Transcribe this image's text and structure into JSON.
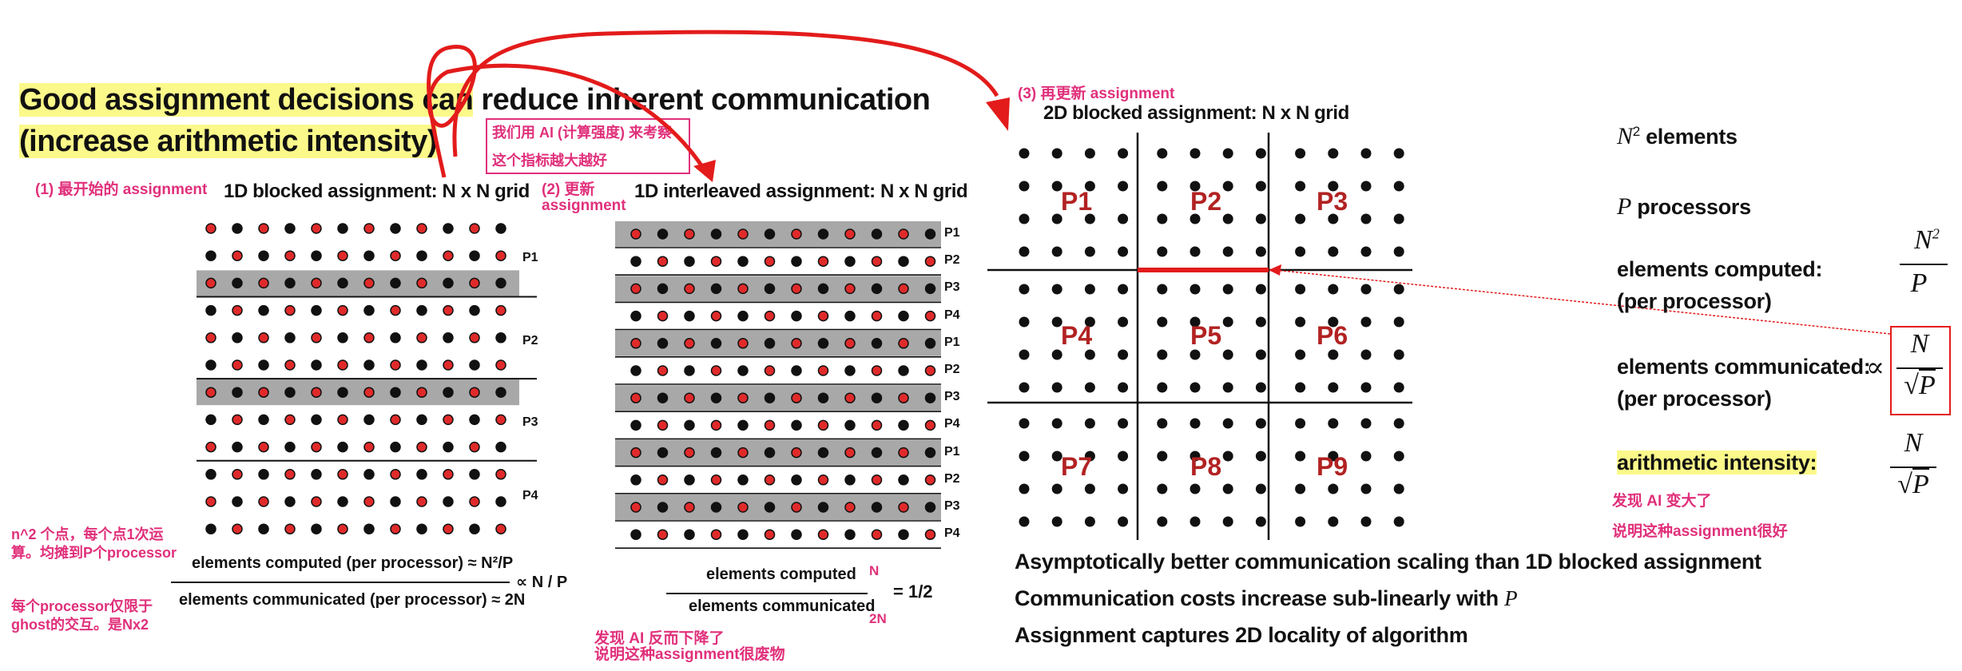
{
  "title": {
    "line1_hl": "Good assignment decisions can",
    "line1_rest": " reduce inherent communication",
    "line2": "(increase arithmetic intensity)"
  },
  "note_box": {
    "line1": "我们用 AI (计算强度) 来考察",
    "line2": "这个指标越大越好"
  },
  "left": {
    "step_label": "(1) 最开始的 assignment",
    "subtitle": "1D blocked assignment: N x N grid",
    "procs": [
      "P1",
      "P2",
      "P3",
      "P4"
    ],
    "eq_numerator": "elements computed (per processor) ≈ N²/P",
    "eq_denominator": "elements communicated (per processor)  ≈ 2N",
    "eq_result": "∝ N / P",
    "note1": "n^2 个点，每个点1次运\n算。均摊到P个processor",
    "note2": "每个processor仅限于\nghost的交互。是Nx2"
  },
  "middle": {
    "step_label_line1": "(2) 更新",
    "step_label_line2": "assignment",
    "subtitle": "1D interleaved assignment: N x N grid",
    "procs": [
      "P1",
      "P2",
      "P3",
      "P4",
      "P1",
      "P2",
      "P3",
      "P4",
      "P1",
      "P2",
      "P3",
      "P4"
    ],
    "eq_numerator": "elements computed",
    "eq_denominator": "elements communicated",
    "eq_num_small": "N",
    "eq_den_small": "2N",
    "eq_result": "= 1/2",
    "note_line1": "发现 AI 反而下降了",
    "note_line2": "说明这种assignment很废物"
  },
  "right": {
    "step_label": "(3) 再更新 assignment",
    "subtitle": "2D blocked assignment: N x N grid",
    "regions": [
      "P1",
      "P2",
      "P3",
      "P4",
      "P5",
      "P6",
      "P7",
      "P8",
      "P9"
    ],
    "bullets": [
      "Asymptotically better communication scaling than 1D blocked assignment",
      "Communication costs increase sub-linearly with ",
      "Assignment captures 2D locality of algorithm"
    ],
    "bullet2_var": "P"
  },
  "side": {
    "n2_var": "N",
    "n2_sup": "2",
    "n2_text": " elements",
    "p_var": "P",
    "p_text": " processors",
    "computed_line1": "elements computed:",
    "computed_line2": "(per processor)",
    "communicated_line1": "elements communicated:",
    "communicated_line2": "(per processor)",
    "ai_label": "arithmetic intensity:",
    "ai_note1": "发现 AI 变大了",
    "ai_note2": "说明这种assignment很好",
    "frac1_num": "N",
    "frac1_num_sup": "2",
    "frac1_den": "P",
    "prop_symbol": "∝",
    "frac_num": "N",
    "frac_den_radical": "√",
    "frac_den": "P"
  },
  "colors": {
    "pink": "#e0307b",
    "red_dot": "#e02a2a",
    "region_red": "#b22222",
    "arrow_red": "#e31b1b",
    "highlight": "#fbf98a",
    "stripe_gray": "#a8a8a8"
  }
}
